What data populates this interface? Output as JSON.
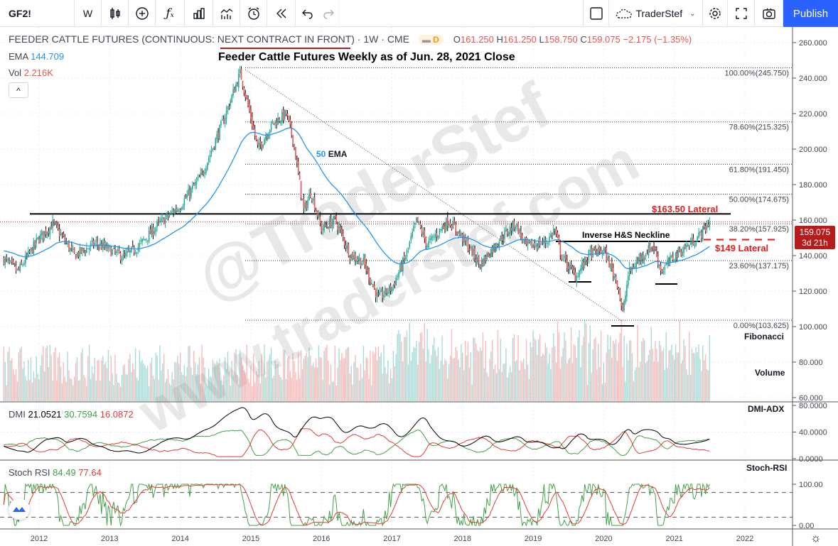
{
  "toolbar": {
    "symbol": "GF2!",
    "interval": "W",
    "account": "TraderStef",
    "publish": "Publish",
    "icons": [
      "candles-icon",
      "add-compare-icon",
      "indicators-fx-icon",
      "bar-chart-icon",
      "templates-icon",
      "alert-icon",
      "replay-icon",
      "undo-icon",
      "redo-icon",
      "layout-square-icon",
      "cloud-icon",
      "gear-icon",
      "fullscreen-icon",
      "camera-icon"
    ]
  },
  "legend": {
    "title": "FEEDER CATTLE FUTURES (CONTINUOUS: NEXT CONTRACT IN FRONT)",
    "sep1": " · ",
    "tf": "1W",
    "sep2": " · ",
    "exchange": "CME",
    "badge": "D",
    "o_label": "O",
    "o": "161.250",
    "h_label": "H",
    "h": "161.250",
    "l_label": "L",
    "l": "158.750",
    "c_label": "C",
    "c": "159.075",
    "change": "−2.175 (−1.35%)",
    "ema_label": "EMA",
    "ema": "144.709",
    "vol_label": "Vol",
    "vol": "2.216K",
    "collapse": "^"
  },
  "colors": {
    "up": "#26a69a",
    "down": "#ef5350",
    "ema": "#2196f3",
    "red_label": "#e31b1b",
    "price_tag": "#b71c1c",
    "publish": "#2962ff"
  },
  "watermark": [
    "@TraderStef",
    "www.traderstef.com"
  ],
  "chart_data": {
    "type": "candlestick",
    "title": "Feeder Cattle Futures Weekly as of Jun. 28, 2021 Close",
    "x_ticks": [
      "2012",
      "2013",
      "2014",
      "2015",
      "2016",
      "2017",
      "2018",
      "2019",
      "2020",
      "2021",
      "2022"
    ],
    "y_ticks": [
      "260.000",
      "240.000",
      "220.000",
      "200.000",
      "180.000",
      "160.000",
      "140.000",
      "120.000",
      "100.000",
      "80.000",
      "60.000"
    ],
    "ylim": [
      60,
      260
    ],
    "price_path": [
      [
        2011.5,
        138
      ],
      [
        2011.7,
        131
      ],
      [
        2012.0,
        150
      ],
      [
        2012.2,
        158
      ],
      [
        2012.5,
        140
      ],
      [
        2012.8,
        147
      ],
      [
        2013.2,
        139
      ],
      [
        2013.4,
        145
      ],
      [
        2013.7,
        158
      ],
      [
        2014.0,
        168
      ],
      [
        2014.3,
        185
      ],
      [
        2014.6,
        215
      ],
      [
        2014.85,
        243
      ],
      [
        2015.0,
        218
      ],
      [
        2015.1,
        200
      ],
      [
        2015.3,
        214
      ],
      [
        2015.5,
        220
      ],
      [
        2015.6,
        205
      ],
      [
        2015.75,
        165
      ],
      [
        2015.85,
        176
      ],
      [
        2016.0,
        155
      ],
      [
        2016.2,
        160
      ],
      [
        2016.4,
        141
      ],
      [
        2016.6,
        136
      ],
      [
        2016.8,
        116
      ],
      [
        2017.0,
        122
      ],
      [
        2017.2,
        140
      ],
      [
        2017.35,
        160
      ],
      [
        2017.5,
        146
      ],
      [
        2017.8,
        160
      ],
      [
        2018.0,
        150
      ],
      [
        2018.25,
        135
      ],
      [
        2018.5,
        148
      ],
      [
        2018.75,
        158
      ],
      [
        2018.9,
        145
      ],
      [
        2019.2,
        148
      ],
      [
        2019.3,
        155
      ],
      [
        2019.4,
        140
      ],
      [
        2019.6,
        128
      ],
      [
        2019.8,
        141
      ],
      [
        2020.0,
        143
      ],
      [
        2020.2,
        124
      ],
      [
        2020.27,
        107
      ],
      [
        2020.35,
        130
      ],
      [
        2020.5,
        138
      ],
      [
        2020.7,
        146
      ],
      [
        2020.82,
        131
      ],
      [
        2021.0,
        140
      ],
      [
        2021.2,
        146
      ],
      [
        2021.35,
        151
      ],
      [
        2021.5,
        159.075
      ]
    ],
    "last_price": "159.075",
    "countdown": "3d 21h",
    "ema_period": 50,
    "ema_label_num": "50",
    "ema_label_text": "EMA",
    "fibonacci": [
      {
        "label": "100.00%(245.750)",
        "value": 245.75
      },
      {
        "label": "78.60%(215.325)",
        "value": 215.325
      },
      {
        "label": "61.80%(191.450)",
        "value": 191.45
      },
      {
        "label": "50.00%(174.675)",
        "value": 174.675
      },
      {
        "label": "38.20%(157.925)",
        "value": 157.925
      },
      {
        "label": "23.60%(137.175)",
        "value": 137.175
      },
      {
        "label": "0.00%(103.625)",
        "value": 103.625
      }
    ],
    "annotations": {
      "lateral_high": "$163.50 Lateral",
      "lateral_high_value": 163.5,
      "lateral_low": "$149 Lateral",
      "lateral_low_value": 149,
      "neckline": "Inverse H&S Neckline",
      "neckline_value": 148,
      "fibonacci": "Fibonacci",
      "volume": "Volume",
      "dmi": "DMI-ADX",
      "stoch": "Stoch-RSI"
    },
    "dmi": {
      "label": "DMI",
      "adx": "21.0521",
      "plus_di": "30.7594",
      "minus_di": "16.0872",
      "ticks": [
        "80.0000",
        "40.0000",
        "0.0000"
      ],
      "ylim": [
        0,
        80
      ]
    },
    "stoch_rsi": {
      "label": "Stoch RSI",
      "k": "84.49",
      "d": "77.64",
      "ticks": [
        "100.00",
        "0.00"
      ],
      "bands": [
        80,
        20
      ],
      "ylim": [
        0,
        100
      ]
    }
  }
}
